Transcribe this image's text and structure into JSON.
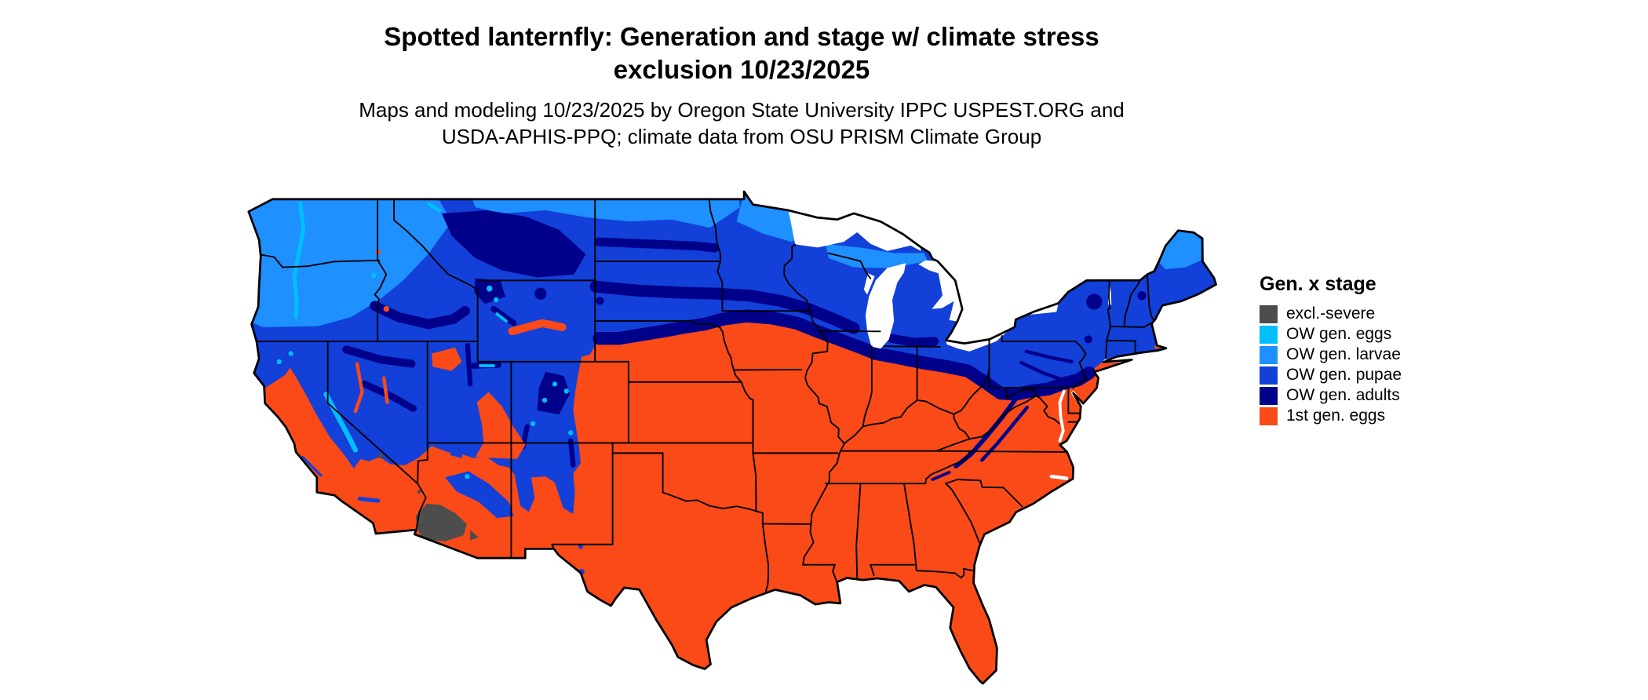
{
  "title": {
    "line1": "Spotted lanternfly: Generation and stage w/ climate stress",
    "line2": "exclusion 10/23/2025"
  },
  "subtitle": {
    "line1": "Maps and modeling 10/23/2025 by Oregon State University IPPC USPEST.ORG and",
    "line2": "USDA-APHIS-PPQ; climate data from OSU PRISM Climate Group"
  },
  "map": {
    "region": "Continental United States",
    "background_color": "#ffffff",
    "boundary_color": "#000000",
    "water_color": "#ffffff"
  },
  "legend": {
    "title": "Gen. x stage",
    "items": [
      {
        "key": "excl",
        "label": "excl.-severe",
        "color": "#4d4d4d"
      },
      {
        "key": "ow-eggs",
        "label": "OW gen. eggs",
        "color": "#00bfff"
      },
      {
        "key": "ow-larvae",
        "label": "OW gen. larvae",
        "color": "#1e90ff"
      },
      {
        "key": "ow-pupae",
        "label": "OW gen. pupae",
        "color": "#1240d9"
      },
      {
        "key": "ow-adults",
        "label": "OW gen. adults",
        "color": "#00008b"
      },
      {
        "key": "first-eggs",
        "label": "1st gen. eggs",
        "color": "#fa4a17"
      }
    ]
  }
}
